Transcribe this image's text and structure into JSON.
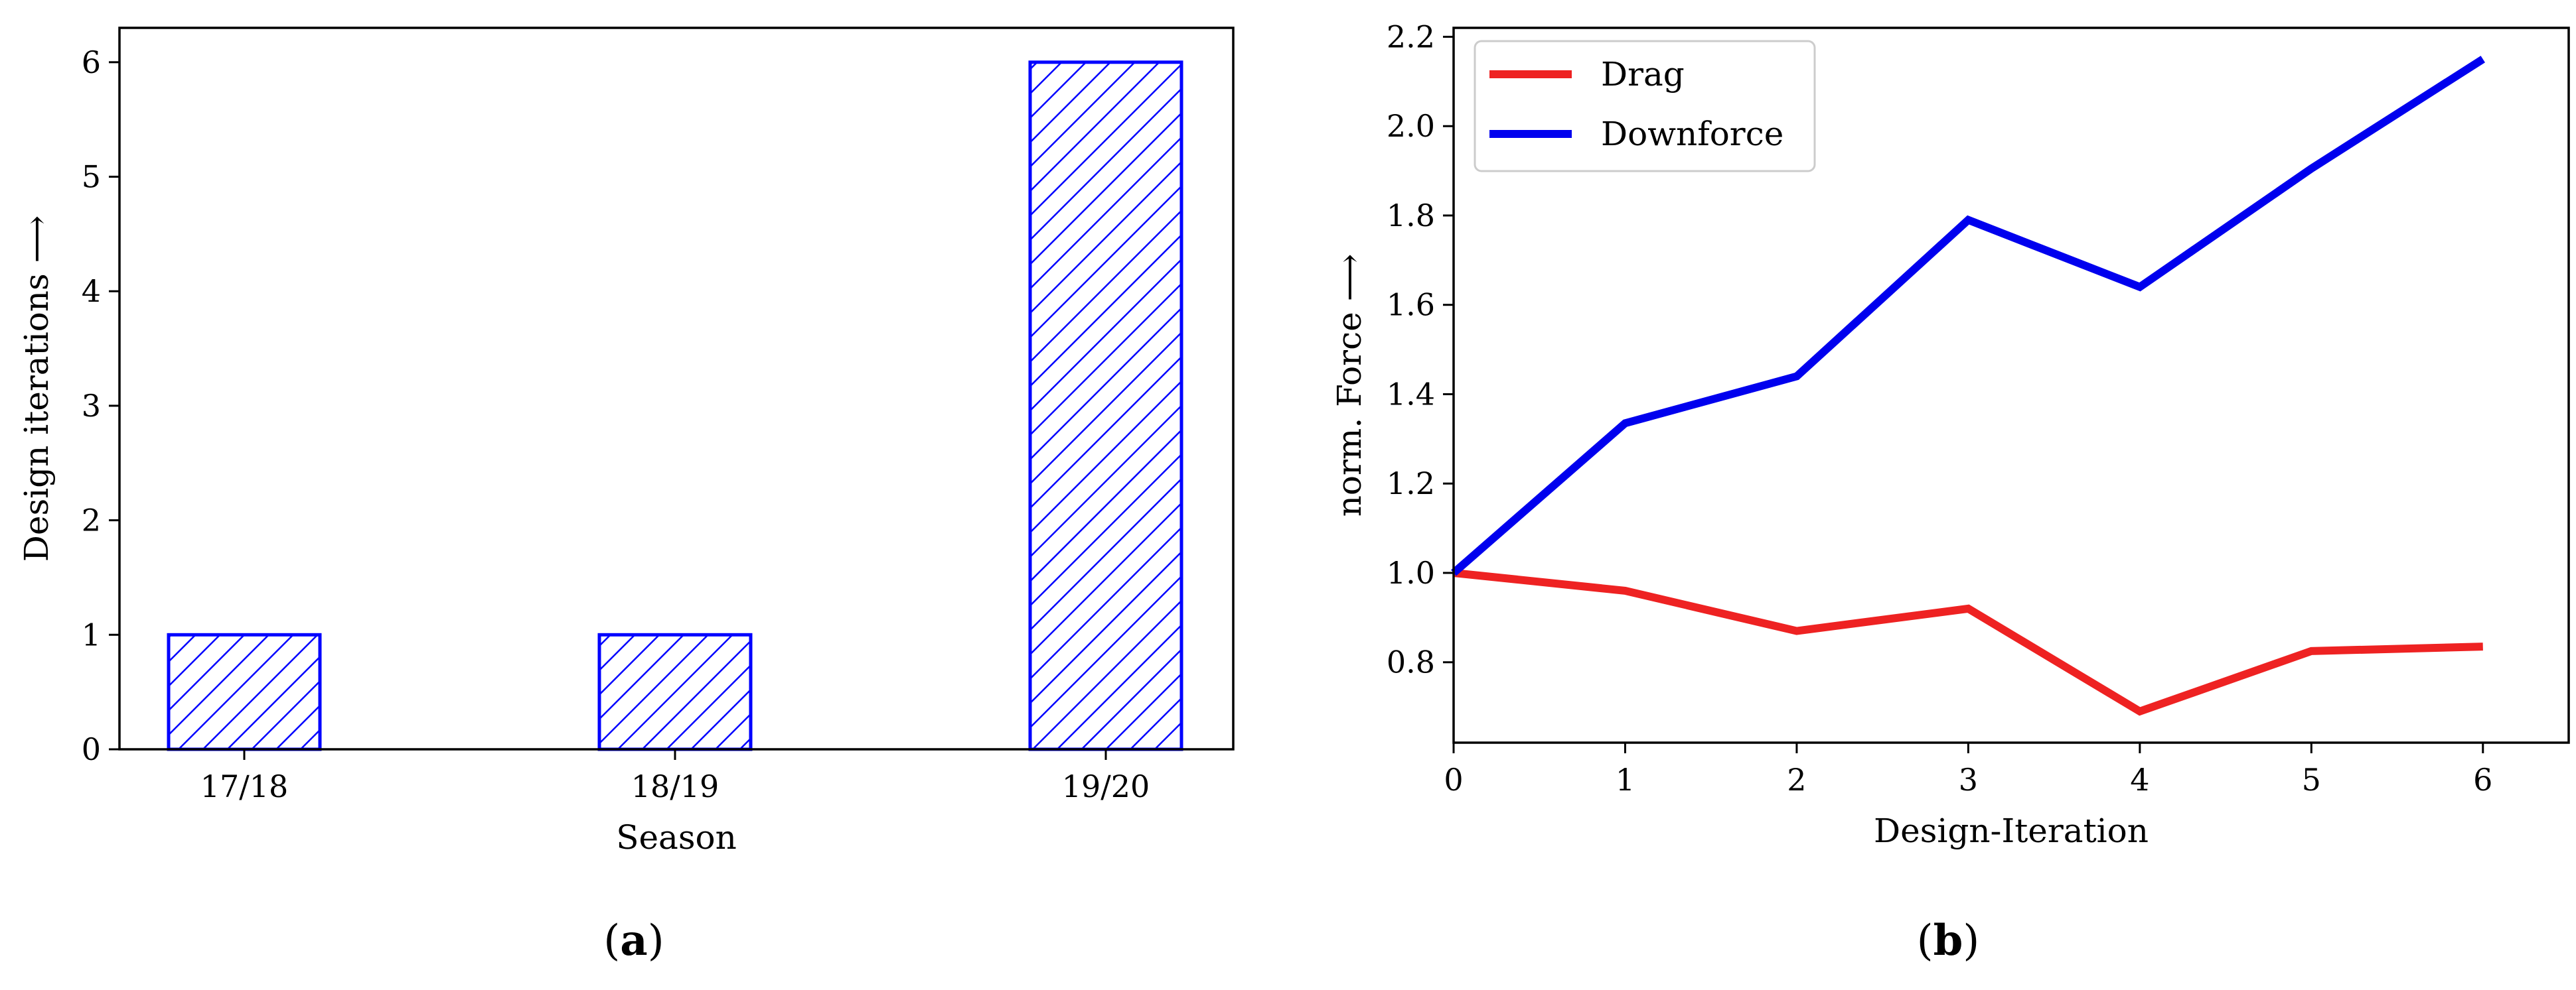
{
  "chart_data": [
    {
      "type": "bar",
      "panel_label": "a",
      "categories": [
        "17/18",
        "18/19",
        "19/20"
      ],
      "values": [
        1,
        1,
        6
      ],
      "xlabel": "Season",
      "ylabel": "Design iterations ⟶",
      "ylim": [
        0,
        6.3
      ],
      "yticks": [
        0,
        1,
        2,
        3,
        4,
        5,
        6
      ],
      "bar_color": "#0000ff",
      "hatch": "diagonal"
    },
    {
      "type": "line",
      "panel_label": "b",
      "x": [
        0,
        1,
        2,
        3,
        4,
        5,
        6
      ],
      "xlim": [
        0,
        6.5
      ],
      "ylim": [
        0.62,
        2.22
      ],
      "xticks": [
        0,
        1,
        2,
        3,
        4,
        5,
        6
      ],
      "yticks": [
        "0.8",
        "1.0",
        "1.2",
        "1.4",
        "1.6",
        "1.8",
        "2.0",
        "2.2"
      ],
      "xlabel": "Design-Iteration",
      "ylabel": "norm. Force ⟶",
      "legend_position": "top-left",
      "series": [
        {
          "name": "Drag",
          "color": "#ee2222",
          "values": [
            1.0,
            0.96,
            0.87,
            0.92,
            0.69,
            0.825,
            0.835
          ]
        },
        {
          "name": "Downforce",
          "color": "#0000ee",
          "values": [
            1.0,
            1.335,
            1.44,
            1.79,
            1.64,
            1.905,
            2.15
          ]
        }
      ]
    }
  ]
}
